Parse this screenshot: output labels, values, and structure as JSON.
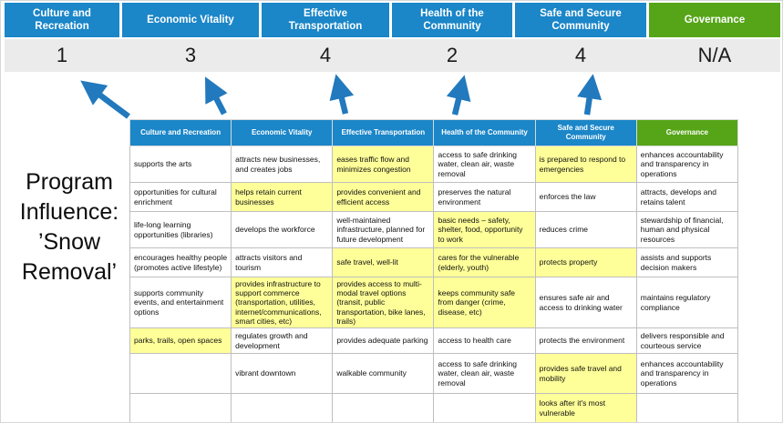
{
  "program": {
    "title": "Program Influence: ’Snow Removal’"
  },
  "colors": {
    "pillar_blue": "#1b86c8",
    "governance_green": "#56a518",
    "highlight_yellow": "#ffff99",
    "arrow_blue": "#2279bd",
    "score_band_gray": "#ebebeb"
  },
  "scoreboard": {
    "columns": [
      {
        "label": "Culture and Recreation",
        "score": "1",
        "color_key": "pillar_blue"
      },
      {
        "label": "Economic Vitality",
        "score": "3",
        "color_key": "pillar_blue"
      },
      {
        "label": "Effective Transportation",
        "score": "4",
        "color_key": "pillar_blue"
      },
      {
        "label": "Health of the Community",
        "score": "2",
        "color_key": "pillar_blue"
      },
      {
        "label": "Safe and Secure Community",
        "score": "4",
        "color_key": "pillar_blue"
      },
      {
        "label": "Governance",
        "score": "N/A",
        "color_key": "governance_green"
      }
    ]
  },
  "matrix": {
    "headers": [
      {
        "label": "Culture and Recreation",
        "color_key": "pillar_blue"
      },
      {
        "label": "Economic Vitality",
        "color_key": "pillar_blue"
      },
      {
        "label": "Effective Transportation",
        "color_key": "pillar_blue"
      },
      {
        "label": "Health of the Community",
        "color_key": "pillar_blue"
      },
      {
        "label": "Safe and Secure Community",
        "color_key": "pillar_blue"
      },
      {
        "label": "Governance",
        "color_key": "governance_green"
      }
    ],
    "rows": [
      [
        {
          "text": "supports the arts",
          "highlight": false
        },
        {
          "text": "attracts new businesses, and creates jobs",
          "highlight": false
        },
        {
          "text": "eases traffic flow and minimizes congestion",
          "highlight": true
        },
        {
          "text": "access to safe drinking water, clean air, waste removal",
          "highlight": false
        },
        {
          "text": "is prepared to respond to emergencies",
          "highlight": true
        },
        {
          "text": "enhances accountability and transparency in operations",
          "highlight": false
        }
      ],
      [
        {
          "text": "opportunities for cultural enrichment",
          "highlight": false
        },
        {
          "text": "helps retain current businesses",
          "highlight": true
        },
        {
          "text": "provides convenient and efficient access",
          "highlight": true
        },
        {
          "text": "preserves the natural environment",
          "highlight": false
        },
        {
          "text": "enforces the law",
          "highlight": false
        },
        {
          "text": "attracts, develops and retains talent",
          "highlight": false
        }
      ],
      [
        {
          "text": "life-long learning opportunities (libraries)",
          "highlight": false
        },
        {
          "text": "develops the workforce",
          "highlight": false
        },
        {
          "text": "well-maintained infrastructure, planned for future development",
          "highlight": false
        },
        {
          "text": "basic needs – safety, shelter, food, opportunity to work",
          "highlight": true
        },
        {
          "text": "reduces crime",
          "highlight": false
        },
        {
          "text": "stewardship of financial, human and physical resources",
          "highlight": false
        }
      ],
      [
        {
          "text": "encourages healthy people (promotes active lifestyle)",
          "highlight": false
        },
        {
          "text": "attracts visitors and tourism",
          "highlight": false
        },
        {
          "text": "safe travel, well-lit",
          "highlight": true
        },
        {
          "text": "cares for the vulnerable (elderly, youth)",
          "highlight": true
        },
        {
          "text": "protects property",
          "highlight": true
        },
        {
          "text": "assists and supports decision makers",
          "highlight": false
        }
      ],
      [
        {
          "text": "supports community events, and entertainment options",
          "highlight": false
        },
        {
          "text": "provides infrastructure to support commerce (transportation, utilities, internet/communications, smart cities, etc)",
          "highlight": true
        },
        {
          "text": "provides access to multi-modal travel options (transit, public transportation, bike lanes, trails)",
          "highlight": true
        },
        {
          "text": "keeps community safe from danger (crime, disease, etc)",
          "highlight": true
        },
        {
          "text": "ensures safe air and access to drinking water",
          "highlight": false
        },
        {
          "text": "maintains regulatory compliance",
          "highlight": false
        }
      ],
      [
        {
          "text": "parks, trails, open spaces",
          "highlight": true
        },
        {
          "text": "regulates growth and development",
          "highlight": false
        },
        {
          "text": "provides adequate parking",
          "highlight": false
        },
        {
          "text": "access to health care",
          "highlight": false
        },
        {
          "text": "protects the environment",
          "highlight": false
        },
        {
          "text": "delivers responsible and courteous service",
          "highlight": false
        }
      ],
      [
        {
          "text": "",
          "highlight": false
        },
        {
          "text": "vibrant downtown",
          "highlight": false
        },
        {
          "text": "walkable community",
          "highlight": false
        },
        {
          "text": "access to safe drinking water, clean air, waste removal",
          "highlight": false
        },
        {
          "text": "provides safe travel and mobility",
          "highlight": true
        },
        {
          "text": "enhances accountability and transparency in operations",
          "highlight": false
        }
      ],
      [
        {
          "text": "",
          "highlight": false
        },
        {
          "text": "",
          "highlight": false
        },
        {
          "text": "",
          "highlight": false
        },
        {
          "text": "",
          "highlight": false
        },
        {
          "text": "looks after it's most vulnerable",
          "highlight": true
        },
        {
          "text": "",
          "highlight": false
        }
      ]
    ]
  }
}
